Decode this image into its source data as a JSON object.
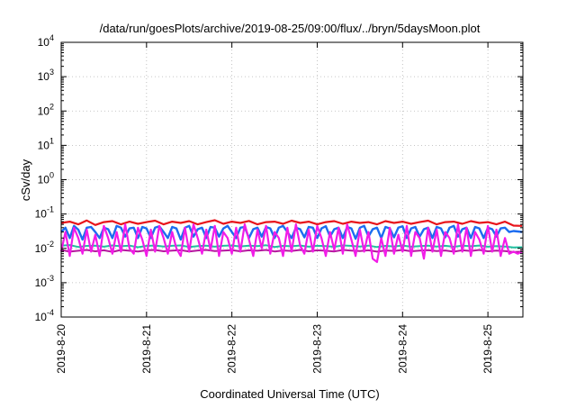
{
  "chart_data": {
    "type": "line",
    "title": "/data/run/goesPlots/archive/2019-08-25/09:00/flux/../bryn/5daysMoon.plot",
    "xlabel": "Coordinated Universal Time (UTC)",
    "ylabel": "cSv/day",
    "yscale": "log",
    "ylim": [
      0.0001,
      10000
    ],
    "xlim": [
      0,
      5.41
    ],
    "grid": true,
    "legend": "none",
    "x_tick_labels": [
      "2019-8-20",
      "2019-8-21",
      "2019-8-22",
      "2019-8-23",
      "2019-8-24",
      "2019-8-25"
    ],
    "x_tick_values": [
      0,
      1,
      2,
      3,
      4,
      5
    ],
    "y_ticks": [
      {
        "base": "10",
        "exp": "-4",
        "value": 0.0001
      },
      {
        "base": "10",
        "exp": "-3",
        "value": 0.001
      },
      {
        "base": "10",
        "exp": "-2",
        "value": 0.01
      },
      {
        "base": "10",
        "exp": "-1",
        "value": 0.1
      },
      {
        "base": "10",
        "exp": "0",
        "value": 1
      },
      {
        "base": "10",
        "exp": "1",
        "value": 10
      },
      {
        "base": "10",
        "exp": "2",
        "value": 100
      },
      {
        "base": "10",
        "exp": "3",
        "value": 1000
      },
      {
        "base": "10",
        "exp": "4",
        "value": 10000
      }
    ],
    "series": [
      {
        "color": "#e8141b",
        "stroke": 2.2,
        "x": [
          0.0,
          0.1,
          0.2,
          0.3,
          0.4,
          0.5,
          0.6,
          0.7,
          0.8,
          0.9,
          1.0,
          1.1,
          1.2,
          1.3,
          1.4,
          1.5,
          1.6,
          1.7,
          1.8,
          1.9,
          2.0,
          2.1,
          2.2,
          2.3,
          2.4,
          2.5,
          2.6,
          2.7,
          2.8,
          2.9,
          3.0,
          3.1,
          3.2,
          3.3,
          3.4,
          3.5,
          3.6,
          3.7,
          3.8,
          3.9,
          4.0,
          4.1,
          4.2,
          4.3,
          4.4,
          4.5,
          4.6,
          4.7,
          4.8,
          4.9,
          5.0,
          5.1,
          5.2,
          5.3,
          5.4
        ],
        "values": [
          0.055,
          0.06,
          0.05,
          0.065,
          0.048,
          0.058,
          0.062,
          0.05,
          0.06,
          0.052,
          0.058,
          0.064,
          0.05,
          0.06,
          0.055,
          0.062,
          0.05,
          0.058,
          0.066,
          0.052,
          0.06,
          0.055,
          0.063,
          0.05,
          0.058,
          0.06,
          0.052,
          0.064,
          0.055,
          0.06,
          0.05,
          0.058,
          0.062,
          0.052,
          0.06,
          0.055,
          0.058,
          0.05,
          0.062,
          0.055,
          0.06,
          0.052,
          0.058,
          0.064,
          0.05,
          0.058,
          0.06,
          0.052,
          0.062,
          0.055,
          0.058,
          0.05,
          0.06,
          0.046,
          0.045
        ]
      },
      {
        "color": "#b5179e",
        "stroke": 2,
        "x": [
          0.0,
          0.1,
          0.2,
          0.3,
          0.4,
          0.5,
          0.6,
          0.7,
          0.8,
          0.9,
          1.0,
          1.1,
          1.2,
          1.3,
          1.4,
          1.5,
          1.6,
          1.7,
          1.8,
          1.9,
          2.0,
          2.1,
          2.2,
          2.3,
          2.4,
          2.5,
          2.6,
          2.7,
          2.8,
          2.9,
          3.0,
          3.1,
          3.2,
          3.3,
          3.4,
          3.5,
          3.6,
          3.7,
          3.8,
          3.9,
          4.0,
          4.1,
          4.2,
          4.3,
          4.4,
          4.5,
          4.6,
          4.7,
          4.8,
          4.9,
          5.0,
          5.1,
          5.2,
          5.3,
          5.4
        ],
        "values": [
          0.009,
          0.008,
          0.0085,
          0.009,
          0.0082,
          0.0088,
          0.0079,
          0.009,
          0.0085,
          0.0081,
          0.0088,
          0.009,
          0.0082,
          0.0086,
          0.0089,
          0.0081,
          0.0087,
          0.009,
          0.0083,
          0.0086,
          0.0089,
          0.0082,
          0.0088,
          0.0085,
          0.009,
          0.0081,
          0.0087,
          0.0084,
          0.009,
          0.0082,
          0.0088,
          0.0085,
          0.0081,
          0.009,
          0.0086,
          0.0083,
          0.0088,
          0.008,
          0.0087,
          0.0084,
          0.009,
          0.0082,
          0.0086,
          0.0089,
          0.0083,
          0.0087,
          0.008,
          0.0088,
          0.0084,
          0.009,
          0.0082,
          0.0086,
          0.0083,
          0.0078,
          0.008
        ]
      },
      {
        "color": "#1fbf9f",
        "stroke": 2,
        "x": [
          0.0,
          0.1,
          0.2,
          0.3,
          0.4,
          0.5,
          0.6,
          0.7,
          0.8,
          0.9,
          1.0,
          1.1,
          1.2,
          1.3,
          1.4,
          1.5,
          1.6,
          1.7,
          1.8,
          1.9,
          2.0,
          2.1,
          2.2,
          2.3,
          2.4,
          2.5,
          2.6,
          2.7,
          2.8,
          2.9,
          3.0,
          3.1,
          3.2,
          3.3,
          3.4,
          3.5,
          3.6,
          3.7,
          3.8,
          3.9,
          4.0,
          4.1,
          4.2,
          4.3,
          4.4,
          4.5,
          4.6,
          4.7,
          4.8,
          4.9,
          5.0,
          5.1,
          5.2,
          5.3,
          5.4
        ],
        "values": [
          0.012,
          0.0125,
          0.011,
          0.0118,
          0.012,
          0.0112,
          0.0122,
          0.0115,
          0.012,
          0.0108,
          0.0118,
          0.0121,
          0.0113,
          0.0119,
          0.0122,
          0.011,
          0.0117,
          0.012,
          0.0112,
          0.0119,
          0.0121,
          0.0114,
          0.012,
          0.0116,
          0.0123,
          0.011,
          0.0118,
          0.0115,
          0.0121,
          0.0112,
          0.0119,
          0.0117,
          0.0111,
          0.0122,
          0.0118,
          0.0113,
          0.012,
          0.0109,
          0.0118,
          0.0114,
          0.0121,
          0.0112,
          0.0117,
          0.012,
          0.0113,
          0.0119,
          0.0111,
          0.012,
          0.0115,
          0.0121,
          0.0112,
          0.0117,
          0.0113,
          0.0106,
          0.0108
        ]
      },
      {
        "color": "#1c6cf0",
        "stroke": 2.4,
        "x": [
          0.0,
          0.05,
          0.1,
          0.15,
          0.2,
          0.25,
          0.3,
          0.35,
          0.4,
          0.45,
          0.5,
          0.55,
          0.6,
          0.65,
          0.7,
          0.75,
          0.8,
          0.85,
          0.9,
          0.95,
          1.0,
          1.05,
          1.1,
          1.15,
          1.2,
          1.25,
          1.3,
          1.35,
          1.4,
          1.45,
          1.5,
          1.55,
          1.6,
          1.65,
          1.7,
          1.75,
          1.8,
          1.85,
          1.9,
          1.95,
          2.0,
          2.05,
          2.1,
          2.15,
          2.2,
          2.25,
          2.3,
          2.35,
          2.4,
          2.45,
          2.5,
          2.55,
          2.6,
          2.65,
          2.7,
          2.75,
          2.8,
          2.85,
          2.9,
          2.95,
          3.0,
          3.05,
          3.1,
          3.15,
          3.2,
          3.25,
          3.3,
          3.35,
          3.4,
          3.45,
          3.5,
          3.55,
          3.6,
          3.65,
          3.7,
          3.75,
          3.8,
          3.85,
          3.9,
          3.95,
          4.0,
          4.05,
          4.1,
          4.15,
          4.2,
          4.25,
          4.3,
          4.35,
          4.4,
          4.45,
          4.5,
          4.55,
          4.6,
          4.65,
          4.7,
          4.75,
          4.8,
          4.85,
          4.9,
          4.95,
          5.0,
          5.05,
          5.1,
          5.15,
          5.2,
          5.25,
          5.3,
          5.35,
          5.4
        ],
        "values": [
          0.03,
          0.04,
          0.02,
          0.045,
          0.035,
          0.018,
          0.04,
          0.042,
          0.03,
          0.02,
          0.04,
          0.036,
          0.02,
          0.045,
          0.04,
          0.022,
          0.038,
          0.04,
          0.02,
          0.042,
          0.038,
          0.02,
          0.04,
          0.044,
          0.03,
          0.02,
          0.042,
          0.038,
          0.018,
          0.04,
          0.045,
          0.022,
          0.036,
          0.04,
          0.02,
          0.042,
          0.04,
          0.022,
          0.038,
          0.045,
          0.03,
          0.02,
          0.04,
          0.042,
          0.02,
          0.036,
          0.04,
          0.022,
          0.042,
          0.038,
          0.02,
          0.04,
          0.045,
          0.03,
          0.02,
          0.04,
          0.036,
          0.021,
          0.042,
          0.04,
          0.02,
          0.038,
          0.044,
          0.022,
          0.036,
          0.04,
          0.02,
          0.042,
          0.038,
          0.019,
          0.04,
          0.045,
          0.022,
          0.036,
          0.04,
          0.02,
          0.042,
          0.038,
          0.021,
          0.04,
          0.044,
          0.02,
          0.038,
          0.042,
          0.022,
          0.036,
          0.04,
          0.02,
          0.042,
          0.038,
          0.021,
          0.04,
          0.045,
          0.022,
          0.036,
          0.04,
          0.02,
          0.042,
          0.038,
          0.02,
          0.04,
          0.036,
          0.022,
          0.038,
          0.04,
          0.03,
          0.032,
          0.031,
          0.03
        ]
      },
      {
        "color": "#f21ce8",
        "stroke": 2.2,
        "x": [
          0.0,
          0.05,
          0.1,
          0.15,
          0.2,
          0.25,
          0.3,
          0.35,
          0.4,
          0.45,
          0.5,
          0.55,
          0.6,
          0.65,
          0.7,
          0.75,
          0.8,
          0.85,
          0.9,
          0.95,
          1.0,
          1.05,
          1.1,
          1.15,
          1.2,
          1.25,
          1.3,
          1.35,
          1.4,
          1.45,
          1.5,
          1.55,
          1.6,
          1.65,
          1.7,
          1.75,
          1.8,
          1.85,
          1.9,
          1.95,
          2.0,
          2.05,
          2.1,
          2.15,
          2.2,
          2.25,
          2.3,
          2.35,
          2.4,
          2.45,
          2.5,
          2.55,
          2.6,
          2.65,
          2.7,
          2.75,
          2.8,
          2.85,
          2.9,
          2.95,
          3.0,
          3.05,
          3.1,
          3.15,
          3.2,
          3.25,
          3.3,
          3.35,
          3.4,
          3.45,
          3.5,
          3.55,
          3.6,
          3.65,
          3.7,
          3.75,
          3.8,
          3.85,
          3.9,
          3.95,
          4.0,
          4.05,
          4.1,
          4.15,
          4.2,
          4.25,
          4.3,
          4.35,
          4.4,
          4.45,
          4.5,
          4.55,
          4.6,
          4.65,
          4.7,
          4.75,
          4.8,
          4.85,
          4.9,
          4.95,
          5.0,
          5.05,
          5.1,
          5.15,
          5.2,
          5.25,
          5.3,
          5.35,
          5.4
        ],
        "values": [
          0.008,
          0.03,
          0.006,
          0.04,
          0.02,
          0.007,
          0.035,
          0.008,
          0.025,
          0.006,
          0.045,
          0.02,
          0.007,
          0.03,
          0.008,
          0.05,
          0.01,
          0.007,
          0.04,
          0.018,
          0.006,
          0.035,
          0.008,
          0.045,
          0.02,
          0.007,
          0.03,
          0.01,
          0.006,
          0.04,
          0.008,
          0.05,
          0.02,
          0.007,
          0.035,
          0.009,
          0.045,
          0.006,
          0.03,
          0.02,
          0.007,
          0.04,
          0.008,
          0.05,
          0.018,
          0.006,
          0.035,
          0.01,
          0.045,
          0.007,
          0.03,
          0.02,
          0.006,
          0.04,
          0.008,
          0.05,
          0.012,
          0.007,
          0.035,
          0.008,
          0.045,
          0.02,
          0.006,
          0.03,
          0.009,
          0.04,
          0.007,
          0.05,
          0.018,
          0.006,
          0.035,
          0.008,
          0.03,
          0.005,
          0.004,
          0.02,
          0.006,
          0.04,
          0.007,
          0.025,
          0.008,
          0.045,
          0.006,
          0.03,
          0.02,
          0.005,
          0.04,
          0.008,
          0.035,
          0.006,
          0.03,
          0.02,
          0.007,
          0.05,
          0.008,
          0.04,
          0.006,
          0.03,
          0.018,
          0.007,
          0.045,
          0.008,
          0.035,
          0.006,
          0.02,
          0.007,
          0.008,
          0.007,
          0.008
        ]
      }
    ]
  }
}
